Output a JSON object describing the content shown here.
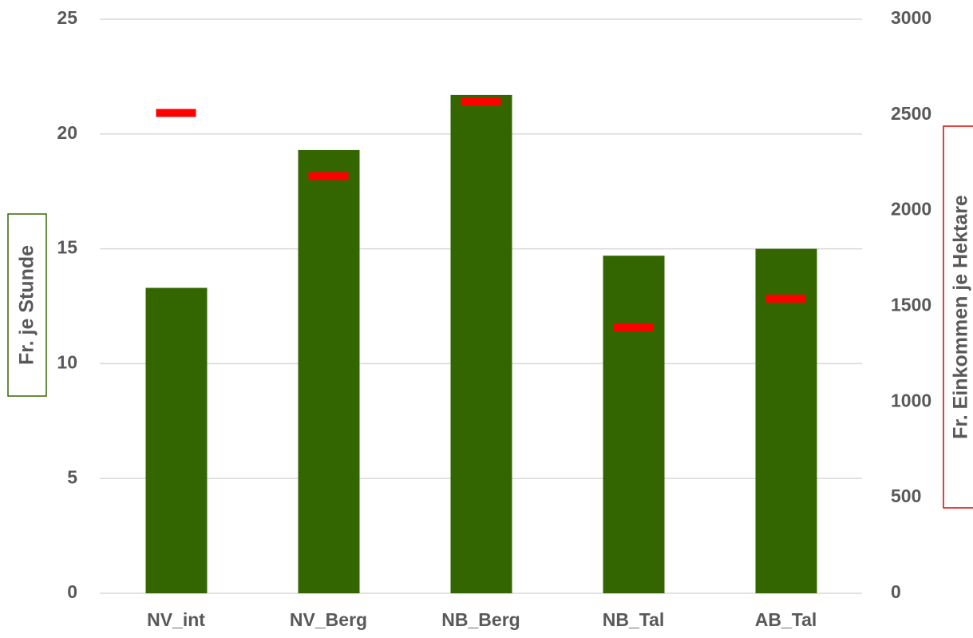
{
  "chart_data": {
    "type": "bar",
    "categories": [
      "NV_int",
      "NV_Berg",
      "NB_Berg",
      "NB_Tal",
      "AB_Tal"
    ],
    "series": [
      {
        "color": "#336600",
        "values": [
          13.3,
          19.3,
          21.7,
          14.7,
          15.0
        ]
      },
      {
        "color": "#ff0000",
        "values": [
          2510,
          2180,
          2570,
          1390,
          1540
        ],
        "axis": "y2",
        "marker": "dash"
      }
    ],
    "ylabel": "Fr. je Stunde",
    "y2label": "Fr. Einkommen je Hektare",
    "ylim": [
      0,
      25
    ],
    "yticks": [
      0,
      5,
      10,
      15,
      20,
      25
    ],
    "y2lim": [
      0,
      3000
    ],
    "y2ticks": [
      0,
      500,
      1000,
      1500,
      2000,
      2500,
      3000
    ],
    "grid": true
  }
}
